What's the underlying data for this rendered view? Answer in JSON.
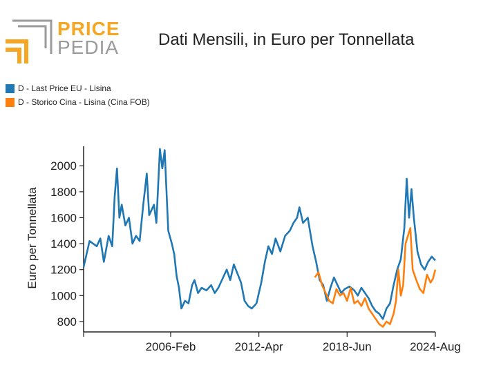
{
  "logo": {
    "word1": "PRICE",
    "word2": "PEDIA"
  },
  "colors": {
    "series1": "#1f77b4",
    "series2": "#ff7f0e",
    "logo_orange": "#f5a623",
    "logo_gray": "#9a9a9a"
  },
  "chart_data": {
    "type": "line",
    "title": "Dati Mensili, in Euro per Tonnellata",
    "ylabel": "Euro per Tonnellata",
    "xlabel": "",
    "ylim": [
      720,
      2150
    ],
    "yticks": [
      800,
      1000,
      1200,
      1400,
      1600,
      1800,
      2000
    ],
    "xticks": [
      "2006-Feb",
      "2012-Apr",
      "2018-Jun",
      "2024-Aug"
    ],
    "x_range": [
      "2000-Jan",
      "2024-Aug"
    ],
    "legend_position": "top-left",
    "grid": false,
    "series": [
      {
        "name": "D - Last Price EU - Lisina",
        "color": "#1f77b4",
        "points": [
          [
            "2000-01",
            1220
          ],
          [
            "2000-06",
            1420
          ],
          [
            "2000-12",
            1380
          ],
          [
            "2001-03",
            1440
          ],
          [
            "2001-06",
            1260
          ],
          [
            "2001-10",
            1460
          ],
          [
            "2002-01",
            1380
          ],
          [
            "2002-03",
            1760
          ],
          [
            "2002-05",
            1980
          ],
          [
            "2002-07",
            1600
          ],
          [
            "2002-09",
            1700
          ],
          [
            "2002-12",
            1540
          ],
          [
            "2003-03",
            1600
          ],
          [
            "2003-06",
            1400
          ],
          [
            "2003-09",
            1460
          ],
          [
            "2003-12",
            1420
          ],
          [
            "2004-03",
            1700
          ],
          [
            "2004-06",
            1940
          ],
          [
            "2004-08",
            1620
          ],
          [
            "2004-12",
            1700
          ],
          [
            "2005-02",
            1560
          ],
          [
            "2005-05",
            2130
          ],
          [
            "2005-07",
            1980
          ],
          [
            "2005-09",
            2120
          ],
          [
            "2005-12",
            1500
          ],
          [
            "2006-03",
            1400
          ],
          [
            "2006-05",
            1320
          ],
          [
            "2006-07",
            1150
          ],
          [
            "2006-09",
            1060
          ],
          [
            "2006-11",
            900
          ],
          [
            "2007-02",
            960
          ],
          [
            "2007-05",
            940
          ],
          [
            "2007-08",
            1080
          ],
          [
            "2007-10",
            1120
          ],
          [
            "2008-01",
            1020
          ],
          [
            "2008-04",
            1060
          ],
          [
            "2008-08",
            1040
          ],
          [
            "2008-12",
            1080
          ],
          [
            "2009-03",
            1020
          ],
          [
            "2009-06",
            1060
          ],
          [
            "2009-10",
            1140
          ],
          [
            "2010-01",
            1200
          ],
          [
            "2010-04",
            1120
          ],
          [
            "2010-07",
            1240
          ],
          [
            "2010-10",
            1170
          ],
          [
            "2011-01",
            1100
          ],
          [
            "2011-04",
            960
          ],
          [
            "2011-07",
            920
          ],
          [
            "2011-10",
            900
          ],
          [
            "2012-02",
            940
          ],
          [
            "2012-06",
            1100
          ],
          [
            "2012-09",
            1260
          ],
          [
            "2012-12",
            1380
          ],
          [
            "2013-03",
            1320
          ],
          [
            "2013-06",
            1440
          ],
          [
            "2013-10",
            1340
          ],
          [
            "2014-02",
            1460
          ],
          [
            "2014-06",
            1500
          ],
          [
            "2014-09",
            1560
          ],
          [
            "2014-12",
            1600
          ],
          [
            "2015-02",
            1680
          ],
          [
            "2015-05",
            1560
          ],
          [
            "2015-09",
            1600
          ],
          [
            "2016-01",
            1380
          ],
          [
            "2016-04",
            1260
          ],
          [
            "2016-07",
            1120
          ],
          [
            "2016-10",
            1080
          ],
          [
            "2017-01",
            960
          ],
          [
            "2017-04",
            1060
          ],
          [
            "2017-07",
            1140
          ],
          [
            "2017-10",
            1080
          ],
          [
            "2018-01",
            1020
          ],
          [
            "2018-04",
            1050
          ],
          [
            "2018-08",
            1070
          ],
          [
            "2018-12",
            1040
          ],
          [
            "2019-03",
            1000
          ],
          [
            "2019-06",
            1060
          ],
          [
            "2019-09",
            1020
          ],
          [
            "2019-12",
            980
          ],
          [
            "2020-03",
            920
          ],
          [
            "2020-06",
            880
          ],
          [
            "2020-09",
            860
          ],
          [
            "2020-12",
            820
          ],
          [
            "2021-03",
            900
          ],
          [
            "2021-06",
            940
          ],
          [
            "2021-09",
            1080
          ],
          [
            "2021-12",
            1200
          ],
          [
            "2022-03",
            1280
          ],
          [
            "2022-06",
            1520
          ],
          [
            "2022-08",
            1900
          ],
          [
            "2022-10",
            1600
          ],
          [
            "2022-12",
            1820
          ],
          [
            "2023-02",
            1600
          ],
          [
            "2023-05",
            1340
          ],
          [
            "2023-08",
            1240
          ],
          [
            "2023-11",
            1200
          ],
          [
            "2024-02",
            1260
          ],
          [
            "2024-05",
            1300
          ],
          [
            "2024-08",
            1270
          ]
        ]
      },
      {
        "name": "D - Storico Cina - Lisina (Cina FOB)",
        "color": "#ff7f0e",
        "points": [
          [
            "2016-03",
            1140
          ],
          [
            "2016-06",
            1180
          ],
          [
            "2016-09",
            1080
          ],
          [
            "2016-12",
            1020
          ],
          [
            "2017-03",
            960
          ],
          [
            "2017-06",
            940
          ],
          [
            "2017-09",
            1050
          ],
          [
            "2017-12",
            1000
          ],
          [
            "2018-03",
            1020
          ],
          [
            "2018-06",
            960
          ],
          [
            "2018-09",
            1060
          ],
          [
            "2018-12",
            940
          ],
          [
            "2019-03",
            960
          ],
          [
            "2019-06",
            920
          ],
          [
            "2019-09",
            980
          ],
          [
            "2019-12",
            900
          ],
          [
            "2020-03",
            860
          ],
          [
            "2020-06",
            820
          ],
          [
            "2020-09",
            780
          ],
          [
            "2020-12",
            760
          ],
          [
            "2021-03",
            800
          ],
          [
            "2021-06",
            780
          ],
          [
            "2021-09",
            860
          ],
          [
            "2021-11",
            960
          ],
          [
            "2022-01",
            1200
          ],
          [
            "2022-03",
            1000
          ],
          [
            "2022-05",
            1080
          ],
          [
            "2022-07",
            1400
          ],
          [
            "2022-09",
            1460
          ],
          [
            "2022-11",
            1520
          ],
          [
            "2023-01",
            1200
          ],
          [
            "2023-04",
            1120
          ],
          [
            "2023-07",
            1050
          ],
          [
            "2023-10",
            1020
          ],
          [
            "2024-01",
            1160
          ],
          [
            "2024-04",
            1100
          ],
          [
            "2024-06",
            1130
          ],
          [
            "2024-08",
            1200
          ]
        ]
      }
    ]
  }
}
